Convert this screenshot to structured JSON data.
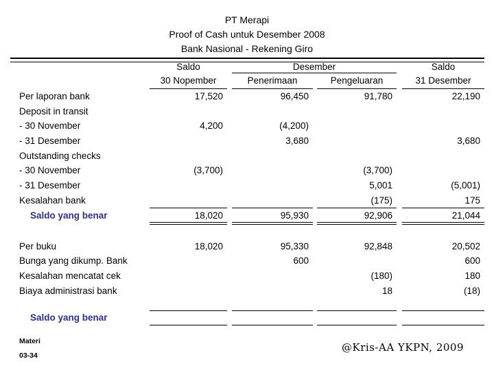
{
  "title": {
    "line1": "PT Merapi",
    "line2": "Proof of Cash untuk Desember 2008",
    "line3": "Bank Nasional - Rekening Giro"
  },
  "table": {
    "header": {
      "saldo_left_top": "Saldo",
      "saldo_left_bottom": "30 Nopember",
      "desember": "Desember",
      "penerimaan": "Penerimaan",
      "pengeluaran": "Pengeluaran",
      "saldo_right_top": "Saldo",
      "saldo_right_bottom": "31 Desember"
    },
    "rows": [
      {
        "label": "Per laporan bank",
        "c1": "17,520",
        "c2": "96,450",
        "c3": "91,780",
        "c4": "22,190"
      },
      {
        "label": "Deposit in transit"
      },
      {
        "label": "- 30 November",
        "c1": "4,200",
        "c2": "(4,200)"
      },
      {
        "label": "- 31 Desember",
        "c2": "3,680",
        "c4": "3,680"
      },
      {
        "label": "Outstanding checks"
      },
      {
        "label": "- 30 November",
        "c1": "(3,700)",
        "c3": "(3,700)"
      },
      {
        "label": "- 31 Desember",
        "c3": "5,001",
        "c4": "(5,001)"
      },
      {
        "label": "Kesalahan bank",
        "c3": "(175)",
        "c4": "175"
      },
      {
        "label": "Saldo yang benar",
        "c1": "18,020",
        "c2": "95,930",
        "c3": "92,906",
        "c4": "21,044"
      },
      {
        "label": "Per buku",
        "c1": "18,020",
        "c2": "95,330",
        "c3": "92,848",
        "c4": "20,502"
      },
      {
        "label": "Bunga yang dikump. Bank",
        "c2": "600",
        "c4": "600"
      },
      {
        "label": "Kesalahan mencatat cek",
        "c3": "(180)",
        "c4": "180"
      },
      {
        "label": "Biaya administrasi bank",
        "c3": "18",
        "c4": "(18)"
      },
      {
        "label": "Saldo yang benar"
      }
    ]
  },
  "footer": {
    "materi_line1": "Materi",
    "materi_line2": "03-34",
    "credit": "@Kris-AA YKPN, 2009"
  },
  "colors": {
    "accent": "#2d3092",
    "text": "#000000",
    "background": "#ffffff"
  }
}
